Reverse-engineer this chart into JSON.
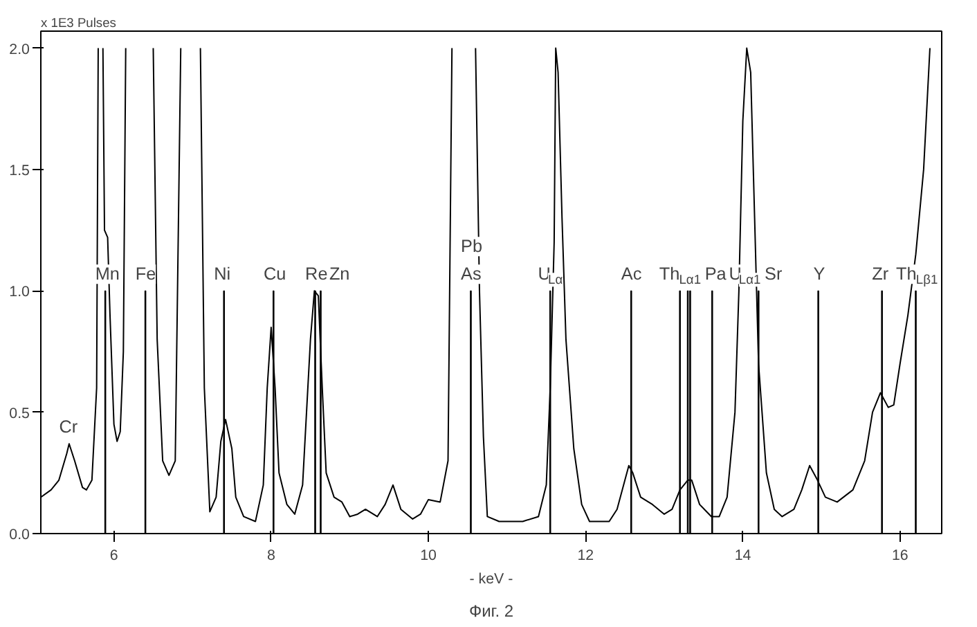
{
  "chart_data": {
    "type": "line",
    "xlabel": "- keV -",
    "ylabel": "x 1E3 Pulses",
    "xlim": [
      5.07,
      16.53
    ],
    "ylim": [
      0,
      2.07
    ],
    "xticks": [
      6,
      8,
      10,
      12,
      14,
      16
    ],
    "yticks": [
      {
        "value": 0,
        "label": "0.0"
      },
      {
        "value": 0.5,
        "label": "0.5"
      },
      {
        "value": 1,
        "label": "1.0"
      },
      {
        "value": 1.5,
        "label": "1.5"
      },
      {
        "value": 2,
        "label": "2.0"
      }
    ],
    "grid": false,
    "marker": "none",
    "line_style": "solid",
    "series": [
      {
        "color": "#000000",
        "x": [
          5.07,
          5.2,
          5.3,
          5.4,
          5.43,
          5.5,
          5.6,
          5.65,
          5.72,
          5.78,
          5.8,
          5.83,
          5.86,
          5.88,
          5.92,
          5.95,
          6.0,
          6.04,
          6.08,
          6.12,
          6.15,
          6.3,
          6.5,
          6.55,
          6.62,
          6.7,
          6.78,
          6.85,
          6.98,
          7.1,
          7.15,
          7.22,
          7.3,
          7.36,
          7.42,
          7.5,
          7.55,
          7.65,
          7.8,
          7.9,
          7.95,
          8.0,
          8.05,
          8.1,
          8.2,
          8.3,
          8.4,
          8.5,
          8.55,
          8.6,
          8.65,
          8.7,
          8.8,
          8.9,
          9.0,
          9.1,
          9.2,
          9.35,
          9.45,
          9.55,
          9.65,
          9.8,
          9.9,
          10.0,
          10.15,
          10.25,
          10.3,
          10.45,
          10.6,
          10.65,
          10.7,
          10.75,
          10.9,
          11.2,
          11.4,
          11.5,
          11.55,
          11.6,
          11.62,
          11.65,
          11.7,
          11.75,
          11.85,
          11.95,
          12.05,
          12.3,
          12.4,
          12.5,
          12.55,
          12.6,
          12.7,
          12.85,
          13.0,
          13.1,
          13.2,
          13.3,
          13.35,
          13.45,
          13.6,
          13.7,
          13.8,
          13.9,
          13.95,
          14.0,
          14.05,
          14.1,
          14.15,
          14.2,
          14.3,
          14.4,
          14.5,
          14.65,
          14.75,
          14.85,
          14.95,
          15.05,
          15.2,
          15.4,
          15.55,
          15.65,
          15.75,
          15.85,
          15.92,
          16.0,
          16.1,
          16.2,
          16.3,
          16.38
        ],
        "values": [
          0.15,
          0.18,
          0.22,
          0.33,
          0.37,
          0.3,
          0.19,
          0.18,
          0.22,
          0.6,
          2.0,
          null,
          2.0,
          1.25,
          1.22,
          0.9,
          0.45,
          0.38,
          0.42,
          0.75,
          2.0,
          null,
          2.0,
          0.8,
          0.3,
          0.24,
          0.3,
          2.0,
          null,
          2.0,
          0.6,
          0.09,
          0.15,
          0.38,
          0.47,
          0.35,
          0.15,
          0.07,
          0.05,
          0.2,
          0.6,
          0.85,
          0.6,
          0.25,
          0.12,
          0.08,
          0.2,
          0.8,
          1.0,
          0.98,
          0.6,
          0.25,
          0.15,
          0.13,
          0.07,
          0.08,
          0.1,
          0.07,
          0.12,
          0.2,
          0.1,
          0.06,
          0.08,
          0.14,
          0.13,
          0.3,
          2.0,
          null,
          2.0,
          1.0,
          0.4,
          0.07,
          0.05,
          0.05,
          0.07,
          0.2,
          0.6,
          1.2,
          2.0,
          1.9,
          1.3,
          0.8,
          0.35,
          0.12,
          0.05,
          0.05,
          0.1,
          0.22,
          0.28,
          0.25,
          0.15,
          0.12,
          0.08,
          0.1,
          0.18,
          0.22,
          0.22,
          0.12,
          0.07,
          0.07,
          0.15,
          0.5,
          1.0,
          1.7,
          2.0,
          1.9,
          1.3,
          0.7,
          0.25,
          0.1,
          0.07,
          0.1,
          0.18,
          0.28,
          0.22,
          0.15,
          0.13,
          0.18,
          0.3,
          0.5,
          0.58,
          0.52,
          0.53,
          0.7,
          0.9,
          1.15,
          1.5,
          2.0
        ]
      },
      {
        "type": "bar",
        "color": "#000000",
        "x": [
          5.89,
          6.4,
          7.4,
          8.03,
          8.56,
          8.63,
          10.54,
          11.55,
          12.58,
          13.2,
          13.3,
          13.33,
          13.61,
          14.2,
          14.96,
          15.77,
          16.2
        ],
        "values": [
          1.0,
          1.0,
          1.0,
          1.0,
          1.0,
          1.0,
          1.0,
          1.0,
          1.0,
          1.0,
          1.0,
          1.0,
          1.0,
          1.0,
          1.0,
          1.0,
          1.0
        ]
      }
    ],
    "annotations": [
      {
        "text": "Cr",
        "x": 5.43,
        "y": 0.37
      },
      {
        "text": "Mn",
        "x": 5.89,
        "y": 1.0
      },
      {
        "text": "Fe",
        "x": 6.4,
        "y": 1.0
      },
      {
        "text": "Ni",
        "x": 7.4,
        "y": 1.0
      },
      {
        "text": "Cu",
        "x": 8.03,
        "y": 1.0
      },
      {
        "text": "Re",
        "x": 8.56,
        "y": 1.0
      },
      {
        "text": "Zn",
        "x": 8.63,
        "y": 1.0
      },
      {
        "text": "As",
        "x": 10.54,
        "y": 1.0
      },
      {
        "text": "Pb",
        "x": 10.54,
        "y": 1.0
      },
      {
        "text": "U$_{Lα}$",
        "x": 11.55,
        "y": 1.0
      },
      {
        "text": "Ac",
        "x": 12.58,
        "y": 1.0
      },
      {
        "text": "Th$_{Lα1}$",
        "x": 13.2,
        "y": 1.0
      },
      {
        "text": "Pa",
        "x": 13.3,
        "y": 1.0
      },
      {
        "text": "U$_{Lα1}$",
        "x": 13.61,
        "y": 1.0
      },
      {
        "text": "Sr",
        "x": 14.2,
        "y": 1.0
      },
      {
        "text": "Y",
        "x": 14.96,
        "y": 1.0
      },
      {
        "text": "Zr",
        "x": 15.77,
        "y": 1.0
      },
      {
        "text": "Th$_{Lβ1}$",
        "x": 16.2,
        "y": 1.0
      },
      "Фиг. 2"
    ]
  }
}
